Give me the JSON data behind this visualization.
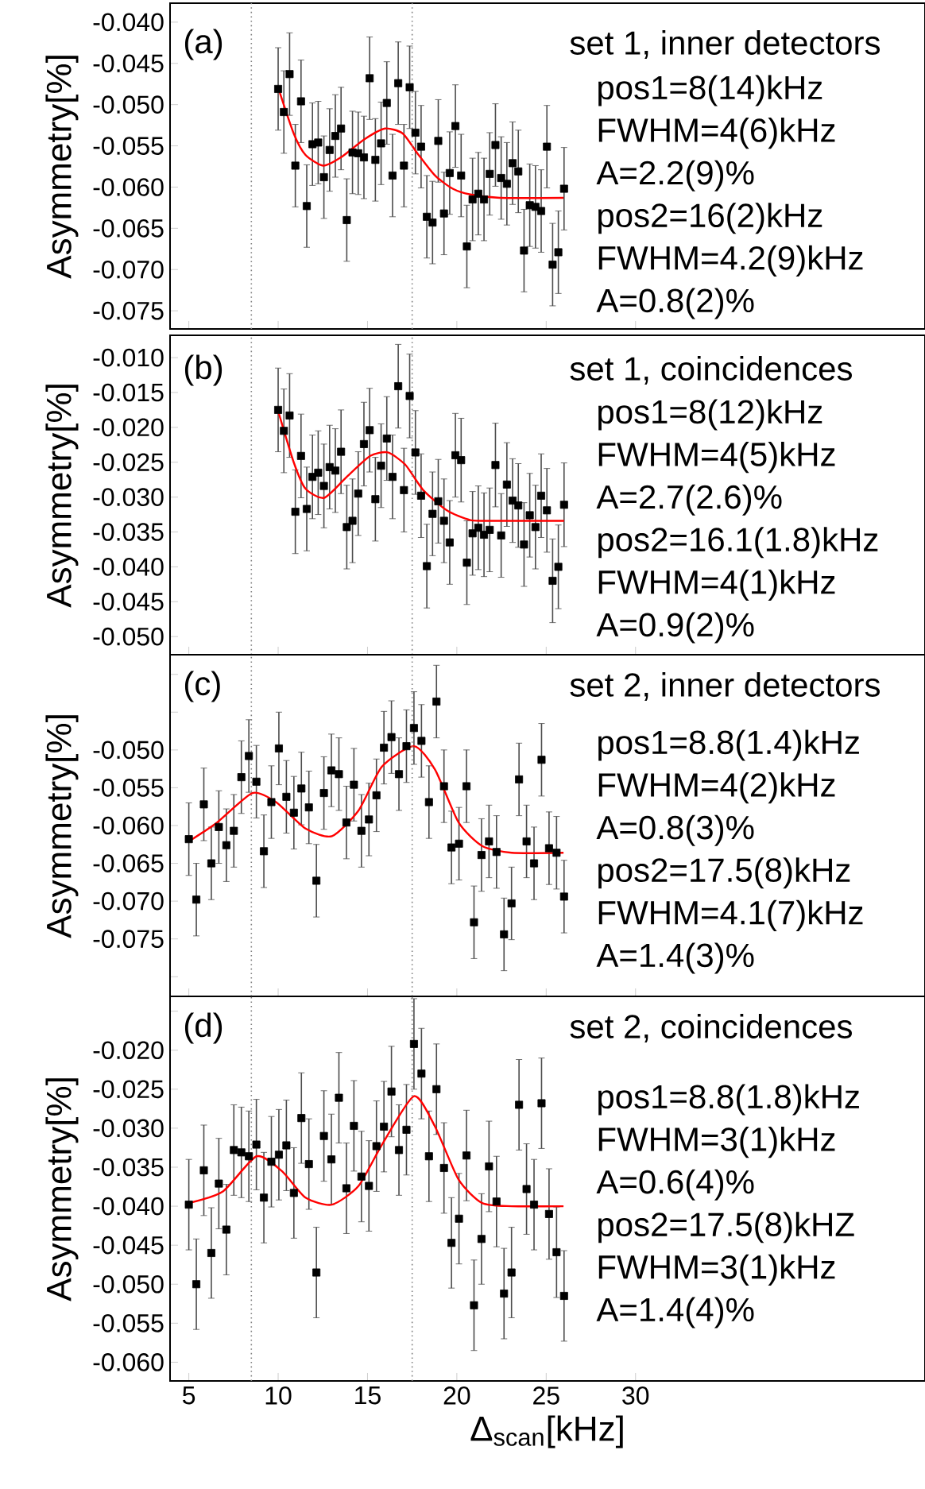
{
  "chart_data": [
    {
      "type": "scatter",
      "ylabel": "Asymmetry[%]",
      "marker": "square",
      "tick_labels": "y",
      "xlim": [
        3.95,
        46.2
      ],
      "xticks": [
        5,
        10,
        15,
        20,
        25,
        30
      ],
      "ylim": [
        -0.0772,
        -0.0377
      ],
      "yticks": [
        {
          "value": -0.04,
          "label": "-0.040"
        },
        {
          "value": -0.045,
          "label": "-0.045"
        },
        {
          "value": -0.05,
          "label": "-0.050"
        },
        {
          "value": -0.055,
          "label": "-0.055"
        },
        {
          "value": -0.06,
          "label": "-0.060"
        },
        {
          "value": -0.065,
          "label": "-0.065"
        },
        {
          "value": -0.07,
          "label": "-0.070"
        },
        {
          "value": -0.075,
          "label": "-0.075"
        }
      ],
      "ref_lines": [
        {
          "axis": "x",
          "value": 8.5,
          "line_style": "dotted",
          "color": "#808080"
        },
        {
          "axis": "x",
          "value": 17.5,
          "line_style": "dotted",
          "color": "#808080"
        }
      ],
      "annotations": [
        "(a)",
        "set 1, inner detectors",
        "pos1=8(14)kHz",
        "FWHM=4(6)kHz",
        "A=2.2(9)%",
        "pos2=16(2)kHz",
        "FWHM=4.2(9)kHz",
        "A=0.8(2)%"
      ],
      "series": [
        {
          "color": "#000000",
          "x": [
            10,
            10.32,
            10.64,
            10.96,
            11.28,
            11.6,
            11.92,
            12.24,
            12.56,
            12.88,
            13.2,
            13.52,
            13.84,
            14.16,
            14.48,
            14.8,
            15.12,
            15.44,
            15.76,
            16.08,
            16.4,
            16.72,
            17.04,
            17.36,
            17.68,
            18,
            18.32,
            18.64,
            18.96,
            19.28,
            19.6,
            19.92,
            20.24,
            20.56,
            20.88,
            21.2,
            21.52,
            21.84,
            22.16,
            22.48,
            22.8,
            23.12,
            23.44,
            23.76,
            24.08,
            24.4,
            24.72,
            25.04,
            25.36,
            25.68,
            26
          ],
          "values": [
            -0.0481,
            -0.0509,
            -0.0463,
            -0.0574,
            -0.0496,
            -0.0623,
            -0.0548,
            -0.0546,
            -0.0588,
            -0.0555,
            -0.0538,
            -0.0529,
            -0.064,
            -0.0558,
            -0.0559,
            -0.0564,
            -0.0468,
            -0.0567,
            -0.0547,
            -0.0498,
            -0.0586,
            -0.0474,
            -0.0574,
            -0.0479,
            -0.0534,
            -0.0551,
            -0.0636,
            -0.0643,
            -0.0544,
            -0.0632,
            -0.0583,
            -0.0526,
            -0.0586,
            -0.0672,
            -0.0615,
            -0.0608,
            -0.0615,
            -0.0584,
            -0.0549,
            -0.0589,
            -0.0596,
            -0.0571,
            -0.0581,
            -0.0677,
            -0.0622,
            -0.0624,
            -0.0629,
            -0.0551,
            -0.0694,
            -0.0679,
            -0.0602
          ],
          "errors": [
            0.005,
            0.005,
            0.005,
            0.005,
            0.005,
            0.005,
            0.005,
            0.005,
            0.005,
            0.005,
            0.005,
            0.005,
            0.005,
            0.005,
            0.005,
            0.005,
            0.005,
            0.005,
            0.005,
            0.005,
            0.005,
            0.005,
            0.005,
            0.005,
            0.005,
            0.005,
            0.005,
            0.005,
            0.005,
            0.005,
            0.005,
            0.005,
            0.005,
            0.005,
            0.005,
            0.005,
            0.005,
            0.005,
            0.005,
            0.005,
            0.005,
            0.005,
            0.005,
            0.005,
            0.005,
            0.005,
            0.005,
            0.005,
            0.005,
            0.005,
            0.005
          ]
        },
        {
          "type": "line",
          "marker": "none",
          "color": "#ff0000",
          "x": [
            9.98,
            10.87,
            11.53,
            12.52,
            13.51,
            14.83,
            15.98,
            16.97,
            17.79,
            18.78,
            19.77,
            20.76,
            22.41,
            25.97
          ],
          "values": [
            -0.0478,
            -0.0535,
            -0.0561,
            -0.0574,
            -0.0564,
            -0.0542,
            -0.0529,
            -0.0535,
            -0.0559,
            -0.0586,
            -0.0602,
            -0.0609,
            -0.0613,
            -0.0613
          ]
        }
      ]
    },
    {
      "type": "scatter",
      "ylabel": "Asymmetry[%]",
      "marker": "square",
      "tick_labels": "y",
      "xlim": [
        3.95,
        46.2
      ],
      "xticks": [
        5,
        10,
        15,
        20,
        25,
        30
      ],
      "ylim": [
        -0.0526,
        -0.0068
      ],
      "yticks": [
        {
          "value": -0.01,
          "label": "-0.010"
        },
        {
          "value": -0.015,
          "label": "-0.015"
        },
        {
          "value": -0.02,
          "label": "-0.020"
        },
        {
          "value": -0.025,
          "label": "-0.025"
        },
        {
          "value": -0.03,
          "label": "-0.030"
        },
        {
          "value": -0.035,
          "label": "-0.035"
        },
        {
          "value": -0.04,
          "label": "-0.040"
        },
        {
          "value": -0.045,
          "label": "-0.045"
        },
        {
          "value": -0.05,
          "label": "-0.050"
        }
      ],
      "ref_lines": [
        {
          "axis": "x",
          "value": 8.5,
          "line_style": "dotted",
          "color": "#808080"
        },
        {
          "axis": "x",
          "value": 17.5,
          "line_style": "dotted",
          "color": "#808080"
        }
      ],
      "annotations": [
        "(b)",
        "set 1, coincidences",
        "pos1=8(12)kHz",
        "FWHM=4(5)kHz",
        "A=2.7(2.6)%",
        "pos2=16.1(1.8)kHz",
        "FWHM=4(1)kHz",
        "A=0.9(2)%"
      ],
      "series": [
        {
          "color": "#000000",
          "x": [
            10,
            10.32,
            10.64,
            10.96,
            11.28,
            11.6,
            11.92,
            12.24,
            12.56,
            12.88,
            13.2,
            13.52,
            13.84,
            14.16,
            14.48,
            14.8,
            15.12,
            15.44,
            15.76,
            16.08,
            16.4,
            16.72,
            17.04,
            17.36,
            17.68,
            18,
            18.32,
            18.64,
            18.96,
            19.28,
            19.6,
            19.92,
            20.24,
            20.56,
            20.88,
            21.2,
            21.52,
            21.84,
            22.16,
            22.48,
            22.8,
            23.12,
            23.44,
            23.76,
            24.08,
            24.4,
            24.72,
            25.04,
            25.36,
            25.68,
            26
          ],
          "values": [
            -0.0175,
            -0.0205,
            -0.0183,
            -0.0321,
            -0.0241,
            -0.0317,
            -0.0271,
            -0.0265,
            -0.0284,
            -0.0257,
            -0.0262,
            -0.0235,
            -0.0343,
            -0.0334,
            -0.0295,
            -0.0224,
            -0.0204,
            -0.0303,
            -0.0255,
            -0.0216,
            -0.0271,
            -0.0141,
            -0.029,
            -0.0155,
            -0.0236,
            -0.0298,
            -0.0399,
            -0.0324,
            -0.0306,
            -0.0334,
            -0.0365,
            -0.024,
            -0.0247,
            -0.0394,
            -0.0352,
            -0.0344,
            -0.0354,
            -0.0347,
            -0.0254,
            -0.0355,
            -0.0282,
            -0.0305,
            -0.0312,
            -0.0368,
            -0.0326,
            -0.0343,
            -0.0298,
            -0.0319,
            -0.042,
            -0.04,
            -0.0311
          ],
          "errors": [
            0.006,
            0.006,
            0.006,
            0.006,
            0.006,
            0.006,
            0.006,
            0.006,
            0.006,
            0.006,
            0.006,
            0.006,
            0.006,
            0.006,
            0.006,
            0.006,
            0.006,
            0.006,
            0.006,
            0.006,
            0.006,
            0.006,
            0.006,
            0.006,
            0.006,
            0.006,
            0.006,
            0.006,
            0.006,
            0.006,
            0.006,
            0.006,
            0.006,
            0.006,
            0.006,
            0.006,
            0.006,
            0.006,
            0.006,
            0.006,
            0.006,
            0.006,
            0.006,
            0.006,
            0.006,
            0.006,
            0.006,
            0.006,
            0.006,
            0.006,
            0.006
          ]
        },
        {
          "type": "line",
          "marker": "none",
          "color": "#ff0000",
          "x": [
            9.98,
            10.87,
            11.53,
            12.58,
            13.84,
            15.15,
            16.14,
            17.13,
            18.12,
            19.44,
            20.76,
            22.41,
            26
          ],
          "values": [
            -0.0175,
            -0.025,
            -0.0288,
            -0.0301,
            -0.0271,
            -0.0241,
            -0.0236,
            -0.0254,
            -0.029,
            -0.0319,
            -0.0333,
            -0.0334,
            -0.0334
          ]
        }
      ]
    },
    {
      "type": "scatter",
      "ylabel": "Asymmetry[%]",
      "marker": "square",
      "tick_labels": "y",
      "xlim": [
        3.95,
        46.2
      ],
      "xticks": [
        5,
        10,
        15,
        20,
        25,
        30
      ],
      "ylim": [
        -0.0826,
        -0.0374
      ],
      "yticks": [
        {
          "value": -0.04,
          "label": null
        },
        {
          "value": -0.045,
          "label": null
        },
        {
          "value": -0.05,
          "label": "-0.050"
        },
        {
          "value": -0.055,
          "label": "-0.055"
        },
        {
          "value": -0.06,
          "label": "-0.060"
        },
        {
          "value": -0.065,
          "label": "-0.065"
        },
        {
          "value": -0.07,
          "label": "-0.070"
        },
        {
          "value": -0.075,
          "label": "-0.075"
        },
        {
          "value": -0.08,
          "label": null
        }
      ],
      "ref_lines": [
        {
          "axis": "x",
          "value": 8.5,
          "line_style": "dotted",
          "color": "#808080"
        },
        {
          "axis": "x",
          "value": 17.5,
          "line_style": "dotted",
          "color": "#808080"
        }
      ],
      "annotations": [
        "(c)",
        "set 2, inner detectors",
        "pos1=8.8(1.4)kHz",
        "FWHM=4(2)kHz",
        "A=0.8(3)%",
        "pos2=17.5(8)kHz",
        "FWHM=4.1(7)kHz",
        "A=1.4(3)%"
      ],
      "series": [
        {
          "color": "#000000",
          "x": [
            5,
            5.42,
            5.84,
            6.26,
            6.68,
            7.1,
            7.52,
            7.94,
            8.36,
            8.78,
            9.2,
            9.62,
            10.04,
            10.46,
            10.88,
            11.3,
            11.72,
            12.14,
            12.56,
            12.98,
            13.4,
            13.82,
            14.24,
            14.66,
            15.08,
            15.5,
            15.92,
            16.34,
            16.76,
            17.18,
            17.6,
            18.02,
            18.44,
            18.86,
            19.28,
            19.7,
            20.12,
            20.54,
            20.96,
            21.38,
            21.8,
            22.22,
            22.64,
            23.06,
            23.48,
            23.9,
            24.32,
            24.74,
            25.16,
            25.58,
            26
          ],
          "values": [
            -0.0618,
            -0.0698,
            -0.0572,
            -0.065,
            -0.0602,
            -0.0626,
            -0.0607,
            -0.0536,
            -0.0508,
            -0.0542,
            -0.0634,
            -0.0569,
            -0.0498,
            -0.0562,
            -0.0583,
            -0.0551,
            -0.0576,
            -0.0673,
            -0.0557,
            -0.0527,
            -0.0532,
            -0.0596,
            -0.0546,
            -0.0607,
            -0.0592,
            -0.056,
            -0.0497,
            -0.0483,
            -0.0532,
            -0.0495,
            -0.0471,
            -0.0488,
            -0.0569,
            -0.0436,
            -0.0548,
            -0.0629,
            -0.0624,
            -0.0548,
            -0.0728,
            -0.0639,
            -0.0621,
            -0.0635,
            -0.0744,
            -0.0703,
            -0.0539,
            -0.0621,
            -0.065,
            -0.0513,
            -0.063,
            -0.0636,
            -0.0694
          ],
          "errors": [
            0.0048,
            0.0048,
            0.0048,
            0.0048,
            0.0048,
            0.0048,
            0.0048,
            0.0048,
            0.0048,
            0.0048,
            0.0048,
            0.0048,
            0.0048,
            0.0048,
            0.0048,
            0.0048,
            0.0048,
            0.0048,
            0.0048,
            0.0048,
            0.0048,
            0.0048,
            0.0048,
            0.0048,
            0.0048,
            0.0048,
            0.0048,
            0.0048,
            0.0048,
            0.0048,
            0.0048,
            0.0048,
            0.0048,
            0.0048,
            0.0048,
            0.0048,
            0.0048,
            0.0048,
            0.0048,
            0.0048,
            0.0048,
            0.0048,
            0.0048,
            0.0048,
            0.0048,
            0.0048,
            0.0048,
            0.0048,
            0.0048,
            0.0048,
            0.0048
          ]
        },
        {
          "type": "line",
          "marker": "none",
          "color": "#ff0000",
          "x": [
            5,
            6.58,
            8.56,
            9.88,
            11.53,
            13.01,
            14.5,
            15.81,
            17.6,
            18.78,
            20.1,
            21.42,
            23.07,
            25.97
          ],
          "values": [
            -0.0621,
            -0.0596,
            -0.0557,
            -0.0569,
            -0.0604,
            -0.0614,
            -0.058,
            -0.0522,
            -0.0495,
            -0.0526,
            -0.0596,
            -0.0627,
            -0.0636,
            -0.0636
          ]
        }
      ]
    },
    {
      "type": "scatter",
      "ylabel": "Asymmetry[%]",
      "xlabel": "Δ$_{scan}$[kHz]",
      "marker": "square",
      "xlim": [
        3.95,
        46.2
      ],
      "xticks": [
        5,
        10,
        15,
        20,
        25,
        30
      ],
      "ylim": [
        -0.0624,
        -0.0131
      ],
      "yticks": [
        {
          "value": -0.015,
          "label": null
        },
        {
          "value": -0.02,
          "label": "-0.020"
        },
        {
          "value": -0.025,
          "label": "-0.025"
        },
        {
          "value": -0.03,
          "label": "-0.030"
        },
        {
          "value": -0.035,
          "label": "-0.035"
        },
        {
          "value": -0.04,
          "label": "-0.040"
        },
        {
          "value": -0.045,
          "label": "-0.045"
        },
        {
          "value": -0.05,
          "label": "-0.050"
        },
        {
          "value": -0.055,
          "label": "-0.055"
        },
        {
          "value": -0.06,
          "label": "-0.060"
        }
      ],
      "ref_lines": [
        {
          "axis": "x",
          "value": 8.5,
          "line_style": "dotted",
          "color": "#808080"
        },
        {
          "axis": "x",
          "value": 17.5,
          "line_style": "dotted",
          "color": "#808080"
        }
      ],
      "annotations": [
        "(d)",
        "set 2, coincidences",
        "pos1=8.8(1.8)kHz",
        "FWHM=3(1)kHz",
        "A=0.6(4)%",
        "pos2=17.5(8)kHZ",
        "FWHM=3(1)kHz",
        "A=1.4(4)%"
      ],
      "series": [
        {
          "color": "#000000",
          "x": [
            5,
            5.42,
            5.84,
            6.26,
            6.68,
            7.1,
            7.52,
            7.94,
            8.36,
            8.78,
            9.2,
            9.62,
            10.04,
            10.46,
            10.88,
            11.3,
            11.72,
            12.14,
            12.56,
            12.98,
            13.4,
            13.82,
            14.24,
            14.66,
            15.08,
            15.5,
            15.92,
            16.34,
            16.76,
            17.18,
            17.6,
            18.02,
            18.44,
            18.86,
            19.28,
            19.7,
            20.12,
            20.54,
            20.96,
            21.38,
            21.8,
            22.22,
            22.64,
            23.06,
            23.48,
            23.9,
            24.32,
            24.74,
            25.16,
            25.58,
            26
          ],
          "values": [
            -0.0398,
            -0.05,
            -0.0354,
            -0.046,
            -0.0371,
            -0.043,
            -0.0328,
            -0.0331,
            -0.0336,
            -0.0321,
            -0.0389,
            -0.0343,
            -0.0334,
            -0.0322,
            -0.0383,
            -0.0287,
            -0.0346,
            -0.0485,
            -0.031,
            -0.034,
            -0.0261,
            -0.0377,
            -0.0297,
            -0.0362,
            -0.0374,
            -0.0323,
            -0.0298,
            -0.0253,
            -0.0328,
            -0.0302,
            -0.0192,
            -0.023,
            -0.0336,
            -0.025,
            -0.0351,
            -0.0447,
            -0.0416,
            -0.0335,
            -0.0527,
            -0.0442,
            -0.0349,
            -0.0394,
            -0.0512,
            -0.0485,
            -0.027,
            -0.0378,
            -0.0398,
            -0.0268,
            -0.041,
            -0.0459,
            -0.0515
          ],
          "errors": [
            0.0058,
            0.0058,
            0.0058,
            0.0058,
            0.0058,
            0.0058,
            0.0058,
            0.0058,
            0.0058,
            0.0058,
            0.0058,
            0.0058,
            0.0058,
            0.0058,
            0.0058,
            0.0058,
            0.0058,
            0.0058,
            0.0058,
            0.0058,
            0.0058,
            0.0058,
            0.0058,
            0.0058,
            0.0058,
            0.0058,
            0.0058,
            0.0058,
            0.0058,
            0.0058,
            0.0058,
            0.0058,
            0.0058,
            0.0058,
            0.0058,
            0.0058,
            0.0058,
            0.0058,
            0.0058,
            0.0058,
            0.0058,
            0.0058,
            0.0058,
            0.0058,
            0.0058,
            0.0058,
            0.0058,
            0.0058,
            0.0058,
            0.0058,
            0.0058
          ]
        },
        {
          "type": "line",
          "marker": "none",
          "color": "#ff0000",
          "x": [
            5,
            6.91,
            8.79,
            10.21,
            11.53,
            13.01,
            14.5,
            15.81,
            17.6,
            18.78,
            20.1,
            21.42,
            23.07,
            25.97
          ],
          "values": [
            -0.0396,
            -0.0381,
            -0.0336,
            -0.0355,
            -0.0389,
            -0.0398,
            -0.0374,
            -0.0321,
            -0.0259,
            -0.0298,
            -0.0366,
            -0.0396,
            -0.04,
            -0.04
          ]
        }
      ]
    }
  ]
}
